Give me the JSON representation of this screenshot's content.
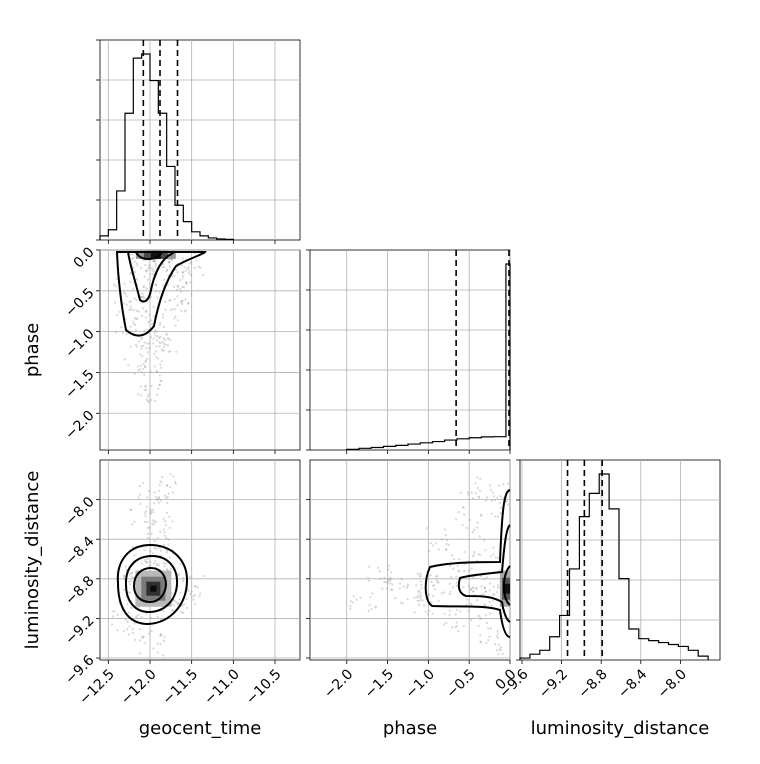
{
  "chart_data": {
    "type": "corner",
    "parameters": [
      "geocent_time",
      "phase",
      "luminosity_distance"
    ],
    "ranges": {
      "geocent_time": [
        -12.6,
        -10.2
      ],
      "phase": [
        -2.45,
        0.0
      ],
      "luminosity_distance": [
        -9.62,
        -7.6
      ]
    },
    "ticks": {
      "geocent_time": [
        -12.5,
        -12.0,
        -11.5,
        -11.0,
        -10.5
      ],
      "phase_x": [
        -2.0,
        -1.5,
        -1.0,
        -0.5,
        0.0
      ],
      "phase_y": [
        0.0,
        -0.5,
        -1.0,
        -1.5,
        -2.0
      ],
      "luminosity_distance": [
        -9.6,
        -9.2,
        -8.8,
        -8.4,
        -8.0
      ]
    },
    "tick_labels": {
      "geocent_time": [
        "−12.5",
        "−12.0",
        "−11.5",
        "−11.0",
        "−10.5"
      ],
      "phase_x": [
        "−2.0",
        "−1.5",
        "−1.0",
        "−0.5",
        "0.0"
      ],
      "phase_y": [
        "0.0",
        "−0.5",
        "−1.0",
        "−1.5",
        "−2.0"
      ],
      "luminosity_distance": [
        "−9.6",
        "−9.2",
        "−8.8",
        "−8.4",
        "−8.0"
      ]
    },
    "axis_labels": {
      "bottom": [
        "geocent_time",
        "phase",
        "luminosity_distance"
      ],
      "left": [
        "phase",
        "luminosity_distance"
      ]
    },
    "marginals": [
      {
        "param": "geocent_time",
        "bin_edges": [
          -12.6,
          -12.5,
          -12.4,
          -12.3,
          -12.2,
          -12.1,
          -12.0,
          -11.9,
          -11.8,
          -11.7,
          -11.6,
          -11.5,
          -11.4,
          -11.3,
          -11.2,
          -11.1,
          -11.0
        ],
        "counts": [
          0.02,
          0.05,
          0.24,
          0.62,
          0.89,
          0.91,
          0.78,
          0.62,
          0.36,
          0.17,
          0.09,
          0.04,
          0.02,
          0.01,
          0.005,
          0.003
        ],
        "quantiles": [
          -12.08,
          -11.88,
          -11.67
        ]
      },
      {
        "param": "phase",
        "bin_edges": [
          -2.0,
          -1.85,
          -1.7,
          -1.55,
          -1.4,
          -1.25,
          -1.1,
          -0.95,
          -0.8,
          -0.65,
          -0.5,
          -0.35,
          -0.2,
          -0.05,
          0.0
        ],
        "counts": [
          0.003,
          0.008,
          0.012,
          0.017,
          0.022,
          0.028,
          0.034,
          0.04,
          0.047,
          0.053,
          0.058,
          0.062,
          0.063,
          0.88
        ],
        "quantiles": [
          -0.66,
          0.0
        ]
      },
      {
        "param": "luminosity_distance",
        "bin_edges": [
          -9.62,
          -9.52,
          -9.42,
          -9.32,
          -9.22,
          -9.12,
          -9.02,
          -8.92,
          -8.82,
          -8.72,
          -8.62,
          -8.52,
          -8.42,
          -8.32,
          -8.22,
          -8.12,
          -8.02,
          -7.92,
          -7.82,
          -7.72
        ],
        "counts": [
          0.01,
          0.03,
          0.05,
          0.12,
          0.23,
          0.47,
          0.74,
          0.86,
          0.96,
          0.78,
          0.42,
          0.16,
          0.11,
          0.1,
          0.09,
          0.08,
          0.07,
          0.05,
          0.02
        ],
        "quantiles": [
          -9.14,
          -8.97,
          -8.79
        ]
      }
    ],
    "scatter_samples": [
      {
        "x_param": "geocent_time",
        "y_param": "phase",
        "points": [
          [
            -11.9,
            -0.05
          ],
          [
            -12.1,
            -0.12
          ],
          [
            -11.8,
            -0.2
          ],
          [
            -12.05,
            -0.3
          ],
          [
            -11.95,
            -0.45
          ],
          [
            -12.2,
            -0.6
          ],
          [
            -11.75,
            -0.72
          ],
          [
            -12.1,
            -0.85
          ],
          [
            -11.85,
            -0.95
          ],
          [
            -12.15,
            -1.05
          ],
          [
            -11.9,
            -1.15
          ],
          [
            -12.0,
            -1.3
          ],
          [
            -11.7,
            -0.4
          ],
          [
            -12.3,
            -0.5
          ],
          [
            -11.6,
            -0.25
          ],
          [
            -12.25,
            -0.9
          ],
          [
            -11.98,
            -1.55
          ],
          [
            -12.05,
            -1.75
          ],
          [
            -11.8,
            -1.2
          ],
          [
            -12.18,
            -1.4
          ],
          [
            -11.65,
            -0.6
          ],
          [
            -11.92,
            -0.1
          ],
          [
            -12.08,
            -0.18
          ],
          [
            -11.5,
            -0.15
          ]
        ]
      },
      {
        "x_param": "geocent_time",
        "y_param": "luminosity_distance",
        "points": [
          [
            -11.95,
            -8.9
          ],
          [
            -12.1,
            -8.85
          ],
          [
            -11.8,
            -9.0
          ],
          [
            -12.0,
            -9.1
          ],
          [
            -11.9,
            -8.7
          ],
          [
            -12.2,
            -8.8
          ],
          [
            -11.7,
            -9.05
          ],
          [
            -12.05,
            -8.6
          ],
          [
            -11.88,
            -8.3
          ],
          [
            -11.92,
            -8.1
          ],
          [
            -12.0,
            -7.95
          ],
          [
            -11.85,
            -8.45
          ],
          [
            -12.3,
            -9.2
          ],
          [
            -11.6,
            -8.95
          ],
          [
            -12.15,
            -9.3
          ],
          [
            -11.98,
            -9.45
          ],
          [
            -11.75,
            -8.75
          ],
          [
            -12.25,
            -8.95
          ],
          [
            -11.5,
            -8.85
          ],
          [
            -12.08,
            -8.2
          ],
          [
            -11.82,
            -7.85
          ],
          [
            -11.95,
            -8.55
          ]
        ]
      },
      {
        "x_param": "phase",
        "y_param": "luminosity_distance",
        "points": [
          [
            -0.05,
            -8.9
          ],
          [
            -0.2,
            -8.85
          ],
          [
            -0.4,
            -8.95
          ],
          [
            -0.6,
            -8.8
          ],
          [
            -0.8,
            -8.9
          ],
          [
            -1.0,
            -8.85
          ],
          [
            -1.2,
            -8.95
          ],
          [
            -1.4,
            -8.9
          ],
          [
            -0.3,
            -8.5
          ],
          [
            -0.5,
            -8.2
          ],
          [
            -0.15,
            -8.05
          ],
          [
            -0.7,
            -9.2
          ],
          [
            -0.25,
            -9.35
          ],
          [
            -0.9,
            -8.4
          ],
          [
            -1.6,
            -8.8
          ],
          [
            -1.8,
            -9.0
          ],
          [
            -0.1,
            -7.95
          ],
          [
            -0.35,
            -9.1
          ],
          [
            -0.55,
            -8.65
          ],
          [
            -1.1,
            -9.05
          ],
          [
            -0.45,
            -7.9
          ],
          [
            -0.05,
            -9.45
          ]
        ]
      }
    ]
  }
}
